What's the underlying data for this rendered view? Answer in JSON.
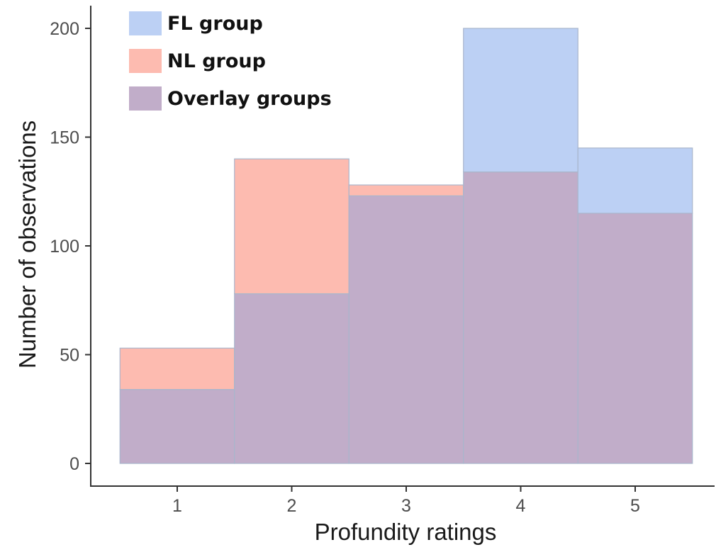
{
  "chart_data": {
    "type": "bar",
    "subtype": "overlaid-histogram",
    "xlabel": "Profundity ratings",
    "ylabel": "Number of observations",
    "categories": [
      "1",
      "2",
      "3",
      "4",
      "5"
    ],
    "ylim": [
      0,
      200
    ],
    "yticks": [
      0,
      50,
      100,
      150,
      200
    ],
    "grid": false,
    "legend_position": "top-left",
    "series": [
      {
        "name": "FL group",
        "values": [
          34,
          78,
          123,
          200,
          145
        ],
        "color": "#bcd0f4"
      },
      {
        "name": "NL group",
        "values": [
          53,
          140,
          128,
          134,
          115
        ],
        "color": "#fdbbb0"
      }
    ],
    "overlay": {
      "name": "Overlay groups",
      "color": "#c1adc9"
    }
  }
}
